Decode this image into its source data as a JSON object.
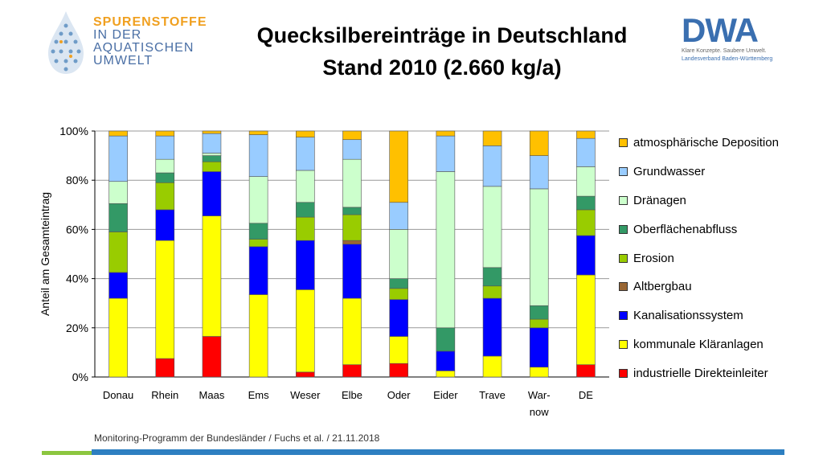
{
  "logo_left": {
    "lines": [
      "SPURENSTOFFE",
      "IN DER",
      "AQUATISCHEN",
      "UMWELT"
    ]
  },
  "title": {
    "line1": "Quecksilbereinträge in Deutschland",
    "line2": "Stand 2010  (2.660 kg/a)"
  },
  "logo_right": {
    "word": "DWA",
    "tagline": "Klare Konzepte. Saubere Umwelt.",
    "subline": "Landesverband Baden-Württemberg"
  },
  "footer": "Monitoring-Programm der Bundesländer / Fuchs et al. / 21.11.2018",
  "chart_data": {
    "type": "bar",
    "stacked": true,
    "ylabel": "Anteil am Gesamteintrag",
    "ylim": [
      0,
      100
    ],
    "yticks": [
      "0%",
      "20%",
      "40%",
      "60%",
      "80%",
      "100%"
    ],
    "grid": true,
    "legend_position": "right",
    "categories": [
      "Donau",
      "Rhein",
      "Maas",
      "Ems",
      "Weser",
      "Elbe",
      "Oder",
      "Eider",
      "Trave",
      "War-\nnow",
      "DE"
    ],
    "series": [
      {
        "name": "industrielle Direkteinleiter",
        "color": "#ff0000",
        "values": [
          0,
          7.5,
          16.5,
          0,
          2,
          5,
          5.5,
          0,
          0,
          0,
          5
        ]
      },
      {
        "name": "kommunale Kläranlagen",
        "color": "#ffff00",
        "values": [
          32,
          48,
          49,
          33.5,
          33.5,
          27,
          11,
          2.5,
          8.5,
          4,
          36.5
        ]
      },
      {
        "name": "Kanalisationssystem",
        "color": "#0000ff",
        "values": [
          10.5,
          12.5,
          18,
          19.5,
          20,
          22,
          15,
          8,
          23.5,
          16,
          16
        ]
      },
      {
        "name": "Altbergbau",
        "color": "#996633",
        "values": [
          0,
          0,
          0,
          0,
          0,
          1.5,
          0,
          0,
          0,
          0,
          0
        ]
      },
      {
        "name": "Erosion",
        "color": "#99cc00",
        "values": [
          16.5,
          11,
          4,
          3,
          9.5,
          10.5,
          4.5,
          0,
          5,
          3.5,
          10.5
        ]
      },
      {
        "name": "Oberflächenabfluss",
        "color": "#339966",
        "values": [
          11.5,
          4,
          2.5,
          6.5,
          6,
          3,
          4,
          9.5,
          7.5,
          5.5,
          5.5
        ]
      },
      {
        "name": "Dränagen",
        "color": "#ccffcc",
        "values": [
          9,
          5.5,
          1,
          19,
          13,
          19.5,
          20,
          63.5,
          33,
          47.5,
          12
        ]
      },
      {
        "name": "Grundwasser",
        "color": "#99ccff",
        "values": [
          18.5,
          9.5,
          8,
          17,
          13.5,
          8,
          11,
          14.5,
          16.5,
          13.5,
          11.5
        ]
      },
      {
        "name": "atmosphärische Deposition",
        "color": "#ffc000",
        "values": [
          2,
          2,
          1,
          1.5,
          2.5,
          3.5,
          29,
          2,
          6,
          10,
          3
        ]
      }
    ]
  }
}
